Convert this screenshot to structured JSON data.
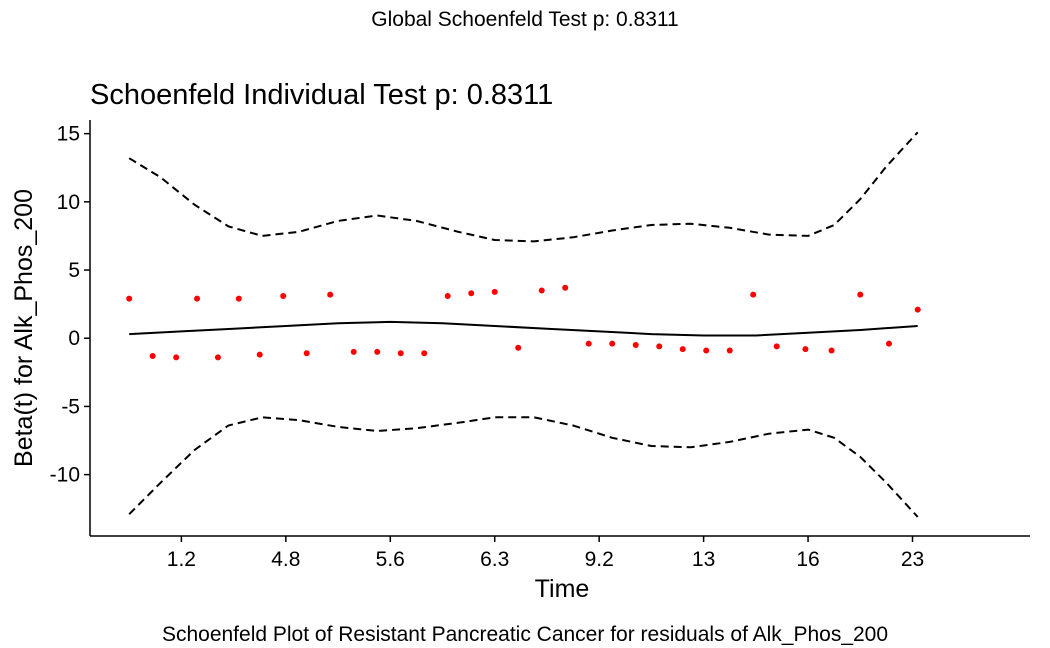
{
  "page": {
    "header": "Global Schoenfeld Test p: 0.8311",
    "caption": "Schoenfeld Plot of Resistant Pancreatic Cancer for residuals of Alk_Phos_200"
  },
  "chart_data": {
    "type": "scatter",
    "title": "Schoenfeld Individual Test p: 0.8311",
    "xlabel": "Time",
    "ylabel": "Beta(t) for Alk_Phos_200",
    "xlim": [
      0.5,
      36.5
    ],
    "ylim": [
      -14.5,
      16.0
    ],
    "x_ticks": [
      {
        "pos": 4,
        "label": "1.2"
      },
      {
        "pos": 8,
        "label": "4.8"
      },
      {
        "pos": 12,
        "label": "5.6"
      },
      {
        "pos": 16,
        "label": "6.3"
      },
      {
        "pos": 20,
        "label": "9.2"
      },
      {
        "pos": 24,
        "label": "13"
      },
      {
        "pos": 28,
        "label": "16"
      },
      {
        "pos": 32,
        "label": "23"
      }
    ],
    "y_ticks": [
      -10,
      -5,
      0,
      5,
      10,
      15
    ],
    "grid": false,
    "points_color": "#ff0000",
    "line_color": "#000000",
    "residuals": [
      {
        "x": 2.0,
        "y": 2.9
      },
      {
        "x": 2.9,
        "y": -1.3
      },
      {
        "x": 3.8,
        "y": -1.4
      },
      {
        "x": 4.6,
        "y": 2.9
      },
      {
        "x": 5.4,
        "y": -1.4
      },
      {
        "x": 6.2,
        "y": 2.9
      },
      {
        "x": 7.0,
        "y": -1.2
      },
      {
        "x": 7.9,
        "y": 3.1
      },
      {
        "x": 8.8,
        "y": -1.1
      },
      {
        "x": 9.7,
        "y": 3.2
      },
      {
        "x": 10.6,
        "y": -1.0
      },
      {
        "x": 11.5,
        "y": -1.0
      },
      {
        "x": 12.4,
        "y": -1.1
      },
      {
        "x": 13.3,
        "y": -1.1
      },
      {
        "x": 14.2,
        "y": 3.1
      },
      {
        "x": 15.1,
        "y": 3.3
      },
      {
        "x": 16.0,
        "y": 3.4
      },
      {
        "x": 16.9,
        "y": -0.7
      },
      {
        "x": 17.8,
        "y": 3.5
      },
      {
        "x": 18.7,
        "y": 3.7
      },
      {
        "x": 19.6,
        "y": -0.4
      },
      {
        "x": 20.5,
        "y": -0.4
      },
      {
        "x": 21.4,
        "y": -0.5
      },
      {
        "x": 22.3,
        "y": -0.6
      },
      {
        "x": 23.2,
        "y": -0.8
      },
      {
        "x": 24.1,
        "y": -0.9
      },
      {
        "x": 25.0,
        "y": -0.9
      },
      {
        "x": 25.9,
        "y": 3.2
      },
      {
        "x": 26.8,
        "y": -0.6
      },
      {
        "x": 27.9,
        "y": -0.8
      },
      {
        "x": 28.9,
        "y": -0.9
      },
      {
        "x": 30.0,
        "y": 3.2
      },
      {
        "x": 31.1,
        "y": -0.4
      },
      {
        "x": 32.2,
        "y": 2.1
      }
    ],
    "fit": {
      "x": [
        2.0,
        4.0,
        6.0,
        8.0,
        10.0,
        12.0,
        14.0,
        16.0,
        18.0,
        20.0,
        22.0,
        24.0,
        26.0,
        28.0,
        30.0,
        32.2
      ],
      "y": [
        0.3,
        0.5,
        0.7,
        0.9,
        1.1,
        1.2,
        1.1,
        0.9,
        0.7,
        0.5,
        0.3,
        0.2,
        0.2,
        0.4,
        0.6,
        0.9
      ]
    },
    "upper_band": {
      "x": [
        2.0,
        3.2,
        4.5,
        5.8,
        7.1,
        8.5,
        10.0,
        11.5,
        13.0,
        14.6,
        16.0,
        17.5,
        19.0,
        20.5,
        22.0,
        23.5,
        25.0,
        26.5,
        28.0,
        29.0,
        30.0,
        31.0,
        32.2
      ],
      "y": [
        13.2,
        11.8,
        9.8,
        8.2,
        7.5,
        7.8,
        8.6,
        9.0,
        8.6,
        7.8,
        7.2,
        7.1,
        7.4,
        7.9,
        8.3,
        8.4,
        8.1,
        7.6,
        7.5,
        8.3,
        10.2,
        12.6,
        15.1
      ]
    },
    "lower_band": {
      "x": [
        2.0,
        3.2,
        4.5,
        5.8,
        7.1,
        8.5,
        10.0,
        11.5,
        13.0,
        14.6,
        16.0,
        17.5,
        19.0,
        20.5,
        22.0,
        23.5,
        25.0,
        26.5,
        28.0,
        29.0,
        30.0,
        31.0,
        32.2
      ],
      "y": [
        -12.9,
        -10.6,
        -8.2,
        -6.4,
        -5.8,
        -6.0,
        -6.5,
        -6.8,
        -6.6,
        -6.2,
        -5.8,
        -5.8,
        -6.4,
        -7.3,
        -7.9,
        -8.0,
        -7.6,
        -7.0,
        -6.7,
        -7.3,
        -8.7,
        -10.6,
        -13.1
      ]
    }
  }
}
